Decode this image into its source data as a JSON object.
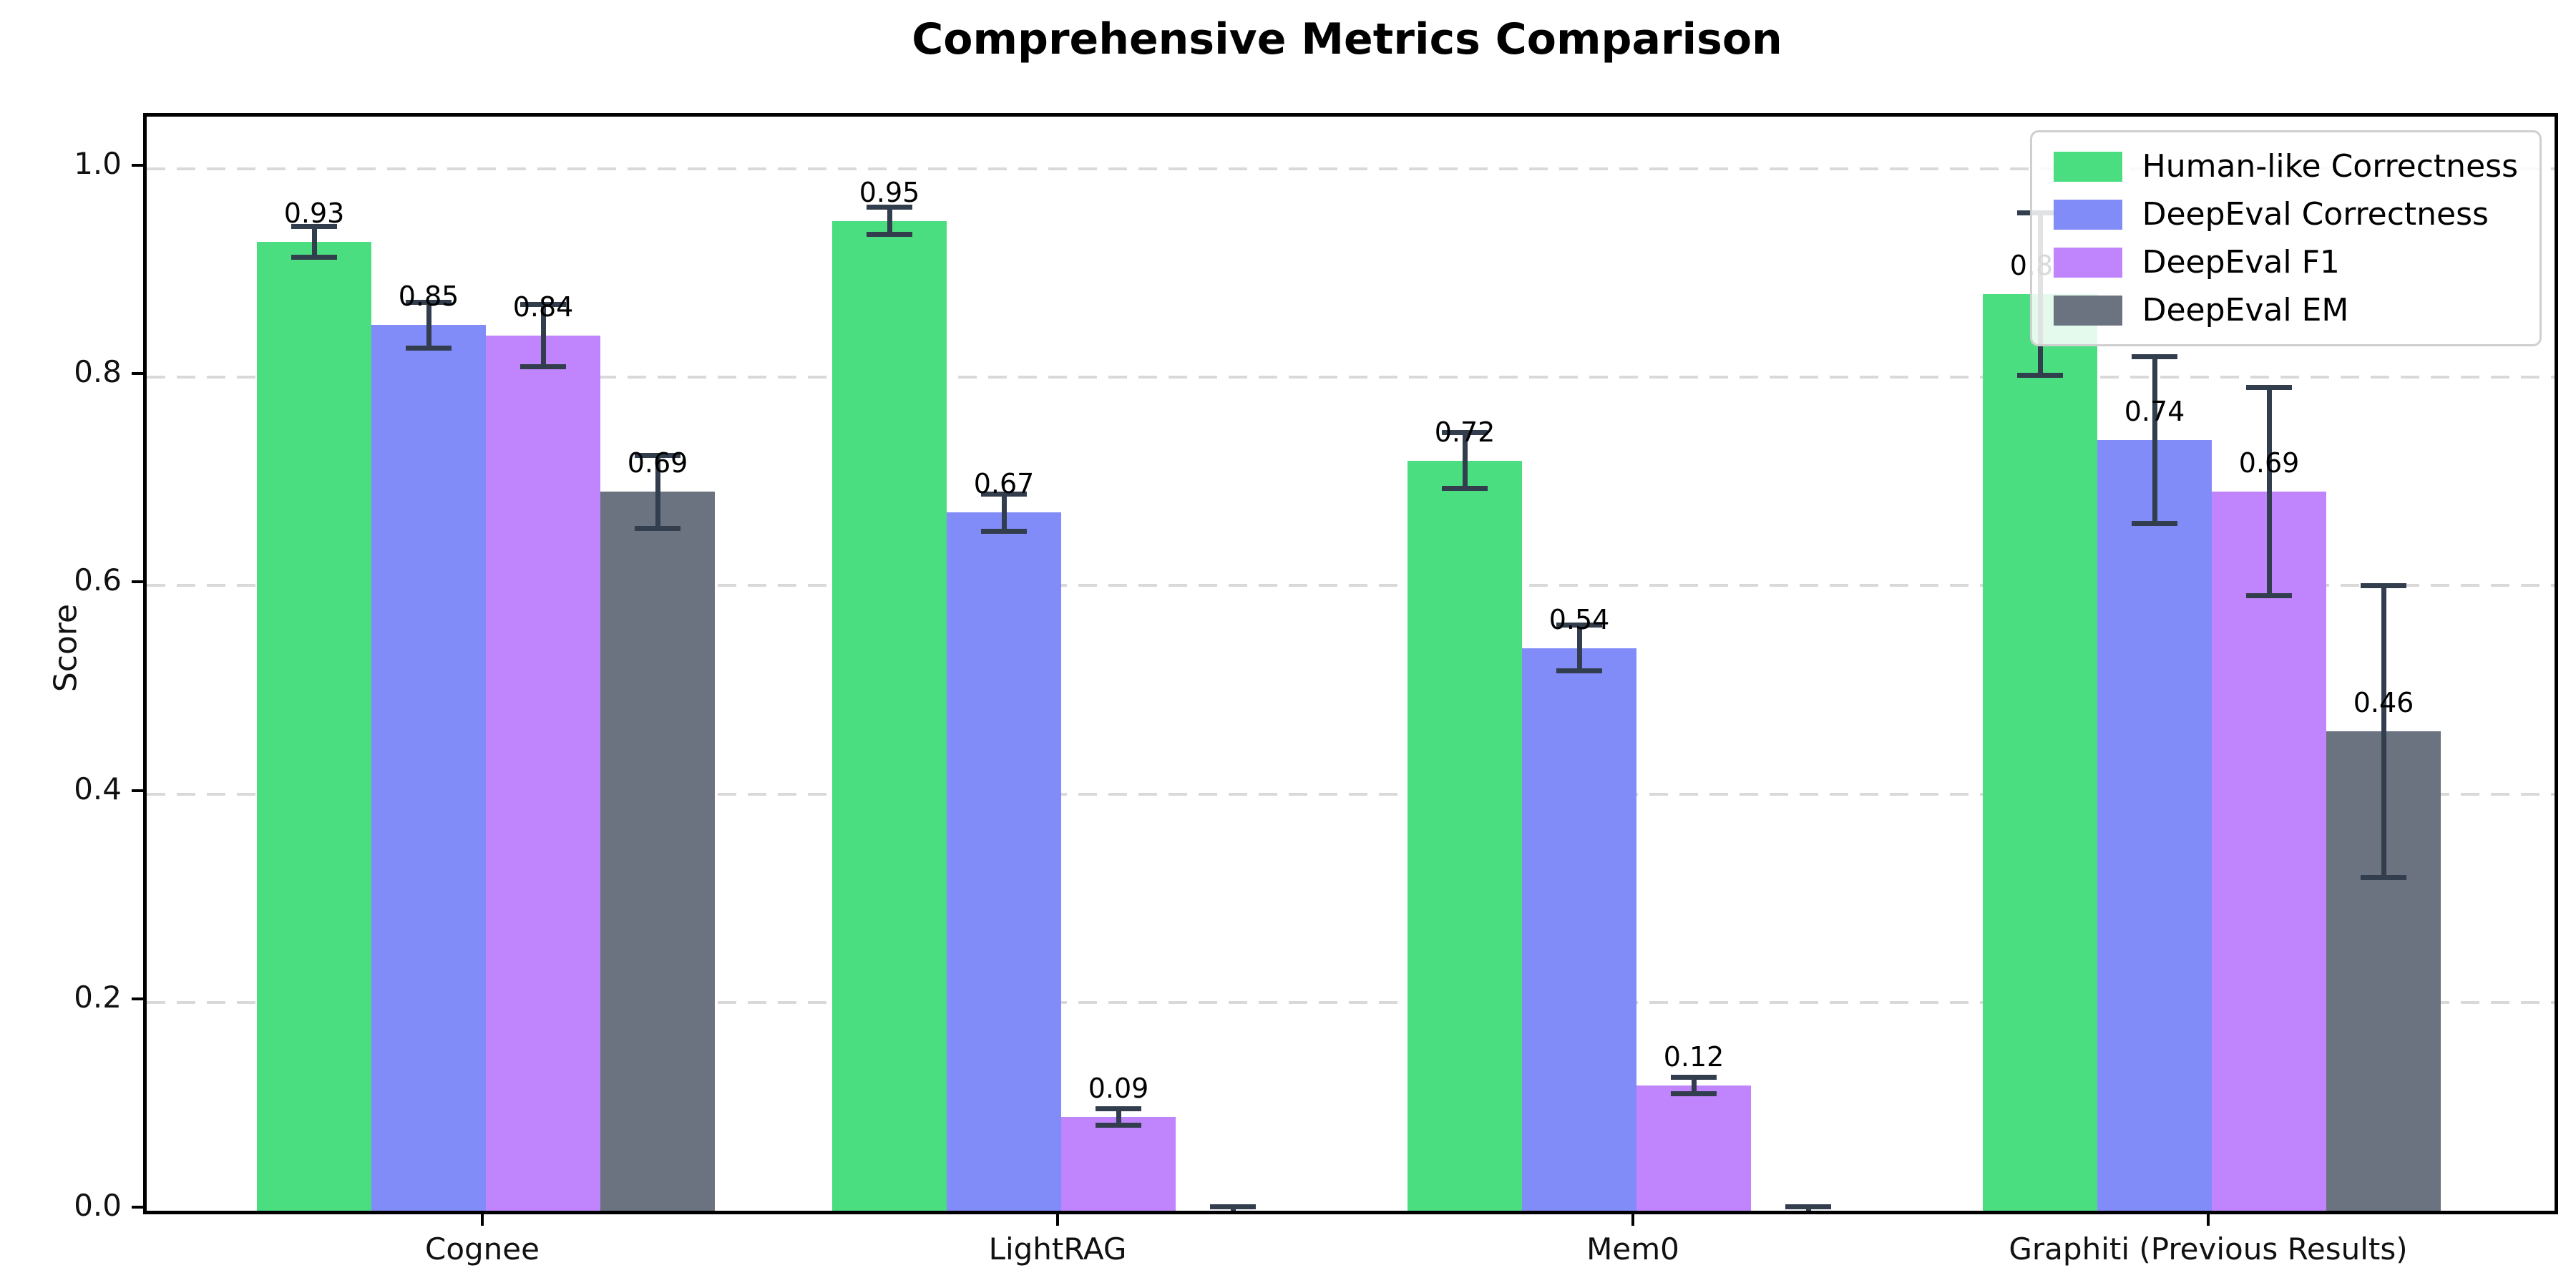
{
  "chart_data": {
    "type": "bar",
    "title": "Comprehensive Metrics Comparison",
    "xlabel": "",
    "ylabel": "Score",
    "categories": [
      "Cognee",
      "LightRAG",
      "Mem0",
      "Graphiti (Previous Results)"
    ],
    "series": [
      {
        "name": "Human-like Correctness",
        "color": "#4ade80",
        "values": [
          0.93,
          0.95,
          0.72,
          0.88
        ],
        "errors": [
          0.015,
          0.013,
          0.027,
          0.078
        ],
        "labels": [
          "0.93",
          "0.95",
          "0.72",
          "0.88"
        ]
      },
      {
        "name": "DeepEval Correctness",
        "color": "#818cf8",
        "values": [
          0.85,
          0.67,
          0.54,
          0.74
        ],
        "errors": [
          0.022,
          0.018,
          0.022,
          0.08
        ],
        "labels": [
          "0.85",
          "0.67",
          "0.54",
          "0.74"
        ]
      },
      {
        "name": "DeepEval F1",
        "color": "#c084fc",
        "values": [
          0.84,
          0.09,
          0.12,
          0.69
        ],
        "errors": [
          0.03,
          0.008,
          0.008,
          0.1
        ],
        "labels": [
          "0.84",
          "0.09",
          "0.12",
          "0.69"
        ]
      },
      {
        "name": "DeepEval EM",
        "color": "#6b7280",
        "values": [
          0.69,
          0.0,
          0.0,
          0.46
        ],
        "errors": [
          0.035,
          0.004,
          0.004,
          0.14
        ],
        "labels": [
          "0.69",
          "",
          "",
          "0.46"
        ]
      }
    ],
    "yticks": [
      "0.0",
      "0.2",
      "0.4",
      "0.6",
      "0.8",
      "1.0"
    ],
    "ylim": [
      0,
      1.05
    ],
    "grid": "horizontal-dashed",
    "legend_position": "upper right",
    "errorbar_color": "#323d4d"
  }
}
